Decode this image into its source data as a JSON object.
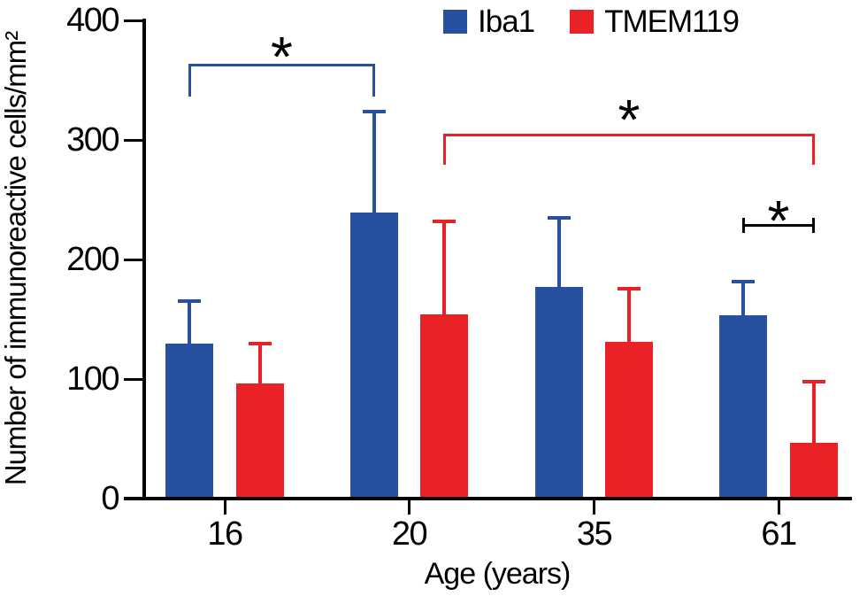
{
  "chart_data": {
    "type": "bar",
    "title": "",
    "xlabel": "Age (years)",
    "ylabel": "Number of immunoreactive cells/mm²",
    "categories": [
      "16",
      "20",
      "35",
      "61"
    ],
    "series": [
      {
        "name": "Iba1",
        "color": "#27509f",
        "values": [
          130,
          239,
          177,
          153
        ],
        "errors": [
          37,
          86,
          59,
          30
        ]
      },
      {
        "name": "TMEM119",
        "color": "#ea2127",
        "values": [
          96,
          154,
          131,
          47
        ],
        "errors": [
          35,
          79,
          46,
          52
        ]
      }
    ],
    "ylim": [
      0,
      400
    ],
    "yticks": [
      0,
      100,
      200,
      300,
      400
    ],
    "grid": false,
    "legend_position": "top",
    "error_bars": "upper-only",
    "annotations": [
      {
        "label": "*",
        "color": "#27509f",
        "from": {
          "series": "Iba1",
          "age": "16"
        },
        "to": {
          "series": "Iba1",
          "age": "20"
        }
      },
      {
        "label": "*",
        "color": "#ea2127",
        "from": {
          "series": "TMEM119",
          "age": "20"
        },
        "to": {
          "series": "TMEM119",
          "age": "61"
        }
      },
      {
        "label": "*",
        "color": "#000000",
        "from": {
          "series": "Iba1",
          "age": "61"
        },
        "to": {
          "series": "TMEM119",
          "age": "61"
        }
      }
    ]
  }
}
